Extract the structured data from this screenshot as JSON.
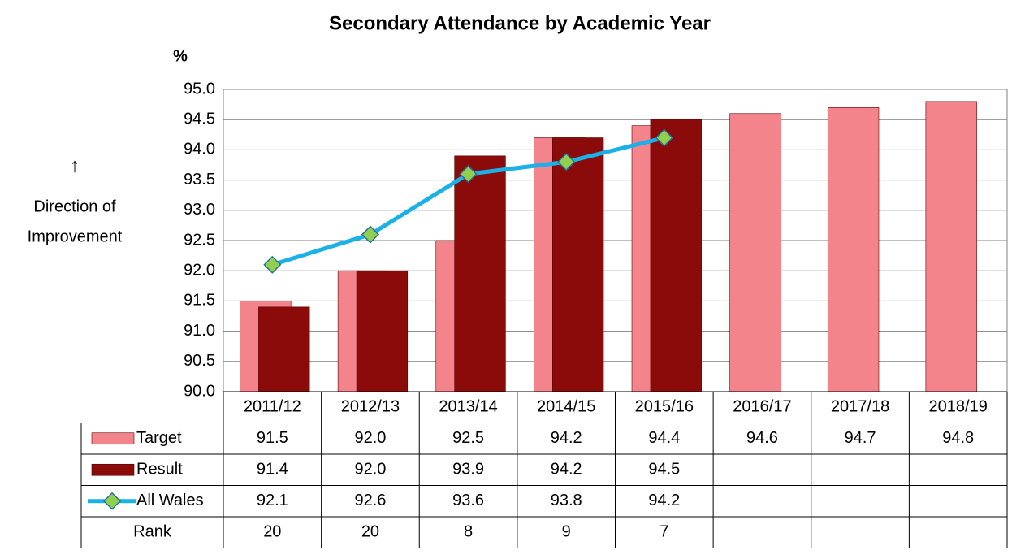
{
  "chart_data": {
    "type": "bar",
    "title": "Secondary Attendance by Academic Year",
    "y_label": "%",
    "annotation": [
      "↑",
      "Direction of",
      "Improvement"
    ],
    "categories": [
      "2011/12",
      "2012/13",
      "2013/14",
      "2014/15",
      "2015/16",
      "2016/17",
      "2017/18",
      "2018/19"
    ],
    "series": [
      {
        "name": "Target",
        "type": "bar",
        "color": "#f4848c",
        "values": [
          91.5,
          92.0,
          92.5,
          94.2,
          94.4,
          94.6,
          94.7,
          94.8
        ],
        "value_labels": [
          "91.5",
          "92.0",
          "92.5",
          "94.2",
          "94.4",
          "94.6",
          "94.7",
          "94.8"
        ]
      },
      {
        "name": "Result",
        "type": "bar",
        "color": "#8b0a0a",
        "values": [
          91.4,
          92.0,
          93.9,
          94.2,
          94.5,
          null,
          null,
          null
        ],
        "value_labels": [
          "91.4",
          "92.0",
          "93.9",
          "94.2",
          "94.5",
          null,
          null,
          null
        ]
      },
      {
        "name": "All Wales",
        "type": "line",
        "color": "#1ab0e8",
        "marker_color": "#8fd14f",
        "values": [
          92.1,
          92.6,
          93.6,
          93.8,
          94.2,
          null,
          null,
          null
        ],
        "value_labels": [
          "92.1",
          "92.6",
          "93.6",
          "93.8",
          "94.2",
          null,
          null,
          null
        ]
      }
    ],
    "rank": {
      "name": "Rank",
      "values": [
        20,
        20,
        8,
        9,
        7,
        null,
        null,
        null
      ]
    },
    "ylim": [
      90,
      95
    ],
    "yticks": [
      {
        "value": 90,
        "label": "90.0"
      },
      {
        "value": 90.5,
        "label": "90.5"
      },
      {
        "value": 91,
        "label": "91.0"
      },
      {
        "value": 91.5,
        "label": "91.5"
      },
      {
        "value": 92,
        "label": "92.0"
      },
      {
        "value": 92.5,
        "label": "92.5"
      },
      {
        "value": 93,
        "label": "93.0"
      },
      {
        "value": 93.5,
        "label": "93.5"
      },
      {
        "value": 94,
        "label": "94.0"
      },
      {
        "value": 94.5,
        "label": "94.5"
      },
      {
        "value": 95,
        "label": "95.0"
      }
    ],
    "grid": true
  }
}
